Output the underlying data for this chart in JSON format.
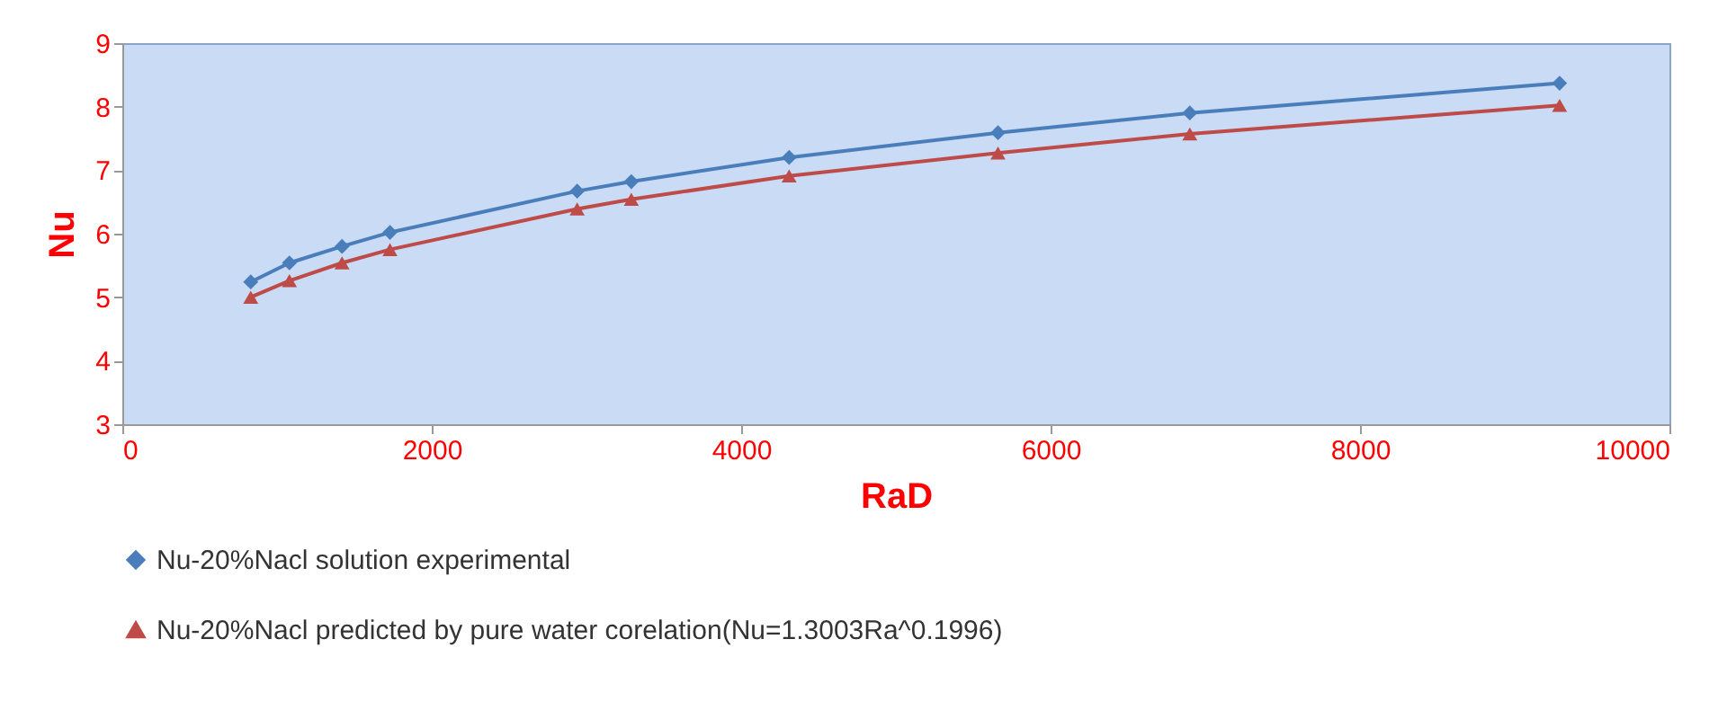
{
  "chart_data": {
    "type": "line",
    "xlabel": "RaD",
    "ylabel": "Nu",
    "xlim": [
      0,
      10000
    ],
    "xticks": [
      0,
      2000,
      4000,
      6000,
      8000,
      10000
    ],
    "ylim": [
      3,
      9
    ],
    "yticks": [
      3,
      4,
      5,
      6,
      7,
      8,
      9
    ],
    "grid": false,
    "legend": "bottom left",
    "series": [
      {
        "name": "Nu-20%Nacl solution experimental",
        "color": "#4a7ebb",
        "marker": "diamond",
        "x": [
          830,
          1080,
          1420,
          1730,
          2940,
          3290,
          4310,
          5660,
          6900,
          9290
        ],
        "values": [
          5.24,
          5.54,
          5.8,
          6.02,
          6.67,
          6.82,
          7.2,
          7.59,
          7.9,
          8.37
        ]
      },
      {
        "name": "Nu-20%Nacl predicted by pure water corelation(Nu=1.3003Ra^0.1996)",
        "color": "#be4b48",
        "marker": "triangle",
        "x": [
          830,
          1080,
          1420,
          1730,
          2940,
          3290,
          4310,
          5660,
          6900,
          9290
        ],
        "values": [
          5.0,
          5.26,
          5.54,
          5.75,
          6.39,
          6.54,
          6.91,
          7.27,
          7.57,
          8.02
        ]
      }
    ]
  }
}
